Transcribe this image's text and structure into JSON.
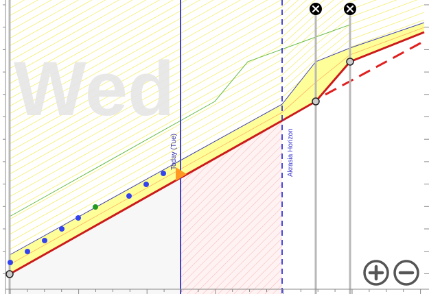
{
  "graph": {
    "day_watermark": "Wed",
    "today_label": "Today (Tue)",
    "horizon_label": "Akrasia Horizon"
  },
  "controls": {
    "zoom_in_icon": "plus-circle-icon",
    "zoom_out_icon": "minus-circle-icon",
    "delete_icon": "x-circle-icon"
  },
  "colors": {
    "road_line": "#cc1a1a",
    "yellow_brick_road": "#ffff99",
    "today_line": "#4444cc",
    "horizon_line": "#3333dd",
    "datapoint": "#3344ee",
    "datapoint_highlight": "#229922",
    "guideline_green": "#66bb44",
    "vertical_marker": "#b8b8b8",
    "future_hatch": "#ffcccc"
  }
}
